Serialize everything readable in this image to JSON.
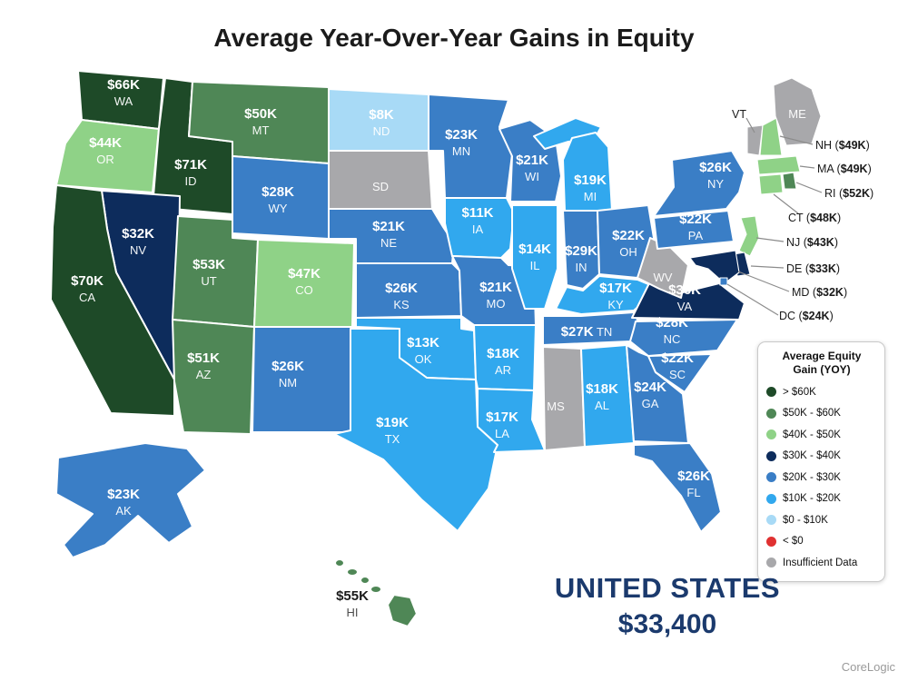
{
  "title": "Average Year-Over-Year Gains in Equity",
  "summary": {
    "label": "UNITED STATES",
    "value": "$33,400"
  },
  "source": "CoreLogic",
  "legend": {
    "title_line1": "Average Equity",
    "title_line2": "Gain (YOY)",
    "items": [
      {
        "key": "gt60",
        "label": "> $60K",
        "color": "#1e4a28"
      },
      {
        "key": "50-60",
        "label": "$50K - $60K",
        "color": "#4f8756"
      },
      {
        "key": "40-50",
        "label": "$40K - $50K",
        "color": "#8fd287"
      },
      {
        "key": "30-40",
        "label": "$30K - $40K",
        "color": "#0d2c5c"
      },
      {
        "key": "20-30",
        "label": "$20K - $30K",
        "color": "#3a7ec6"
      },
      {
        "key": "10-20",
        "label": "$10K - $20K",
        "color": "#31a8ee"
      },
      {
        "key": "0-10",
        "label": "$0 - $10K",
        "color": "#a8daf6"
      },
      {
        "key": "neg",
        "label": "< $0",
        "color": "#e03131"
      },
      {
        "key": "na",
        "label": "Insufficient Data",
        "color": "#a8a8ab"
      }
    ]
  },
  "states": [
    {
      "abbr": "WA",
      "value": "$66K",
      "category": "gt60"
    },
    {
      "abbr": "OR",
      "value": "$44K",
      "category": "40-50"
    },
    {
      "abbr": "CA",
      "value": "$70K",
      "category": "gt60"
    },
    {
      "abbr": "ID",
      "value": "$71K",
      "category": "gt60"
    },
    {
      "abbr": "NV",
      "value": "$32K",
      "category": "30-40"
    },
    {
      "abbr": "MT",
      "value": "$50K",
      "category": "50-60"
    },
    {
      "abbr": "WY",
      "value": "$28K",
      "category": "20-30"
    },
    {
      "abbr": "UT",
      "value": "$53K",
      "category": "50-60"
    },
    {
      "abbr": "CO",
      "value": "$47K",
      "category": "40-50"
    },
    {
      "abbr": "AZ",
      "value": "$51K",
      "category": "50-60"
    },
    {
      "abbr": "NM",
      "value": "$26K",
      "category": "20-30"
    },
    {
      "abbr": "ND",
      "value": "$8K",
      "category": "0-10"
    },
    {
      "abbr": "SD",
      "value": null,
      "category": "na"
    },
    {
      "abbr": "NE",
      "value": "$21K",
      "category": "20-30"
    },
    {
      "abbr": "KS",
      "value": "$26K",
      "category": "20-30"
    },
    {
      "abbr": "OK",
      "value": "$13K",
      "category": "10-20"
    },
    {
      "abbr": "TX",
      "value": "$19K",
      "category": "10-20"
    },
    {
      "abbr": "MN",
      "value": "$23K",
      "category": "20-30"
    },
    {
      "abbr": "IA",
      "value": "$11K",
      "category": "10-20"
    },
    {
      "abbr": "MO",
      "value": "$21K",
      "category": "20-30"
    },
    {
      "abbr": "AR",
      "value": "$18K",
      "category": "10-20"
    },
    {
      "abbr": "LA",
      "value": "$17K",
      "category": "10-20"
    },
    {
      "abbr": "WI",
      "value": "$21K",
      "category": "20-30"
    },
    {
      "abbr": "IL",
      "value": "$14K",
      "category": "10-20"
    },
    {
      "abbr": "MI",
      "value": "$19K",
      "category": "10-20"
    },
    {
      "abbr": "IN",
      "value": "$29K",
      "category": "20-30"
    },
    {
      "abbr": "OH",
      "value": "$22K",
      "category": "20-30"
    },
    {
      "abbr": "KY",
      "value": "$17K",
      "category": "10-20"
    },
    {
      "abbr": "TN",
      "value": "$27K",
      "category": "20-30"
    },
    {
      "abbr": "MS",
      "value": null,
      "category": "na"
    },
    {
      "abbr": "AL",
      "value": "$18K",
      "category": "10-20"
    },
    {
      "abbr": "GA",
      "value": "$24K",
      "category": "20-30"
    },
    {
      "abbr": "SC",
      "value": "$22K",
      "category": "20-30"
    },
    {
      "abbr": "NC",
      "value": "$28K",
      "category": "20-30"
    },
    {
      "abbr": "VA",
      "value": "$36K",
      "category": "30-40"
    },
    {
      "abbr": "WV",
      "value": null,
      "category": "na"
    },
    {
      "abbr": "FL",
      "value": "$26K",
      "category": "20-30"
    },
    {
      "abbr": "PA",
      "value": "$22K",
      "category": "20-30"
    },
    {
      "abbr": "NY",
      "value": "$26K",
      "category": "20-30"
    },
    {
      "abbr": "VT",
      "value": null,
      "category": "na"
    },
    {
      "abbr": "NH",
      "value": "$49K",
      "category": "40-50"
    },
    {
      "abbr": "ME",
      "value": null,
      "category": "na"
    },
    {
      "abbr": "MA",
      "value": "$49K",
      "category": "40-50"
    },
    {
      "abbr": "RI",
      "value": "$52K",
      "category": "50-60"
    },
    {
      "abbr": "CT",
      "value": "$48K",
      "category": "40-50"
    },
    {
      "abbr": "NJ",
      "value": "$43K",
      "category": "40-50"
    },
    {
      "abbr": "DE",
      "value": "$33K",
      "category": "30-40"
    },
    {
      "abbr": "MD",
      "value": "$32K",
      "category": "30-40"
    },
    {
      "abbr": "DC",
      "value": "$24K",
      "category": "20-30"
    },
    {
      "abbr": "AK",
      "value": "$23K",
      "category": "20-30"
    },
    {
      "abbr": "HI",
      "value": "$55K",
      "category": "50-60"
    }
  ]
}
